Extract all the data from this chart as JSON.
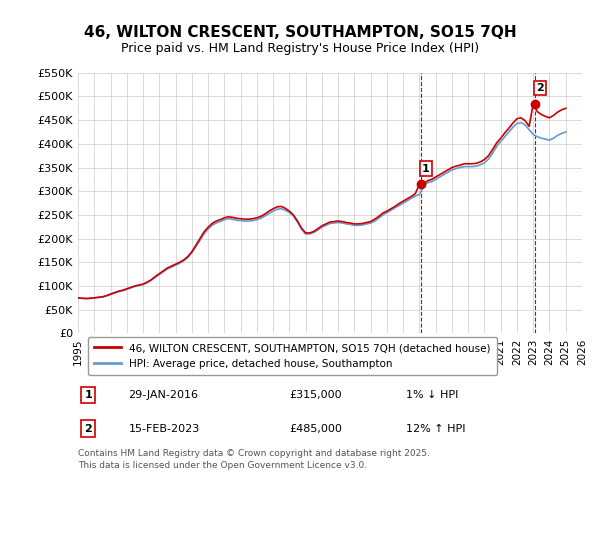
{
  "title": "46, WILTON CRESCENT, SOUTHAMPTON, SO15 7QH",
  "subtitle": "Price paid vs. HM Land Registry's House Price Index (HPI)",
  "background_color": "#ffffff",
  "grid_color": "#cccccc",
  "ylim": [
    0,
    550000
  ],
  "yticks": [
    0,
    50000,
    100000,
    150000,
    200000,
    250000,
    300000,
    350000,
    400000,
    450000,
    500000,
    550000
  ],
  "xlim_start": 1995,
  "xlim_end": 2026,
  "red_line_color": "#cc0000",
  "blue_line_color": "#6699cc",
  "marker1_x": 2016.08,
  "marker1_y": 315000,
  "marker2_x": 2023.12,
  "marker2_y": 485000,
  "vline1_x": 2016.08,
  "vline2_x": 2023.12,
  "legend_label_red": "46, WILTON CRESCENT, SOUTHAMPTON, SO15 7QH (detached house)",
  "legend_label_blue": "HPI: Average price, detached house, Southampton",
  "annotation1_label": "1",
  "annotation1_date": "29-JAN-2016",
  "annotation1_price": "£315,000",
  "annotation1_hpi": "1% ↓ HPI",
  "annotation2_label": "2",
  "annotation2_date": "15-FEB-2023",
  "annotation2_price": "£485,000",
  "annotation2_hpi": "12% ↑ HPI",
  "footer": "Contains HM Land Registry data © Crown copyright and database right 2025.\nThis data is licensed under the Open Government Licence v3.0.",
  "hpi_series_x": [
    1995,
    1995.25,
    1995.5,
    1995.75,
    1996,
    1996.25,
    1996.5,
    1996.75,
    1997,
    1997.25,
    1997.5,
    1997.75,
    1998,
    1998.25,
    1998.5,
    1998.75,
    1999,
    1999.25,
    1999.5,
    1999.75,
    2000,
    2000.25,
    2000.5,
    2000.75,
    2001,
    2001.25,
    2001.5,
    2001.75,
    2002,
    2002.25,
    2002.5,
    2002.75,
    2003,
    2003.25,
    2003.5,
    2003.75,
    2004,
    2004.25,
    2004.5,
    2004.75,
    2005,
    2005.25,
    2005.5,
    2005.75,
    2006,
    2006.25,
    2006.5,
    2006.75,
    2007,
    2007.25,
    2007.5,
    2007.75,
    2008,
    2008.25,
    2008.5,
    2008.75,
    2009,
    2009.25,
    2009.5,
    2009.75,
    2010,
    2010.25,
    2010.5,
    2010.75,
    2011,
    2011.25,
    2011.5,
    2011.75,
    2012,
    2012.25,
    2012.5,
    2012.75,
    2013,
    2013.25,
    2013.5,
    2013.75,
    2014,
    2014.25,
    2014.5,
    2014.75,
    2015,
    2015.25,
    2015.5,
    2015.75,
    2016,
    2016.25,
    2016.5,
    2016.75,
    2017,
    2017.25,
    2017.5,
    2017.75,
    2018,
    2018.25,
    2018.5,
    2018.75,
    2019,
    2019.25,
    2019.5,
    2019.75,
    2020,
    2020.25,
    2020.5,
    2020.75,
    2021,
    2021.25,
    2021.5,
    2021.75,
    2022,
    2022.25,
    2022.5,
    2022.75,
    2023,
    2023.25,
    2023.5,
    2023.75,
    2024,
    2024.25,
    2024.5,
    2024.75,
    2025
  ],
  "hpi_series_y": [
    75000,
    74000,
    73500,
    74000,
    75000,
    76000,
    77000,
    79000,
    82000,
    85000,
    88000,
    90000,
    93000,
    96000,
    99000,
    101000,
    103000,
    107000,
    112000,
    118000,
    124000,
    130000,
    136000,
    140000,
    144000,
    148000,
    153000,
    160000,
    170000,
    183000,
    196000,
    210000,
    220000,
    228000,
    233000,
    236000,
    240000,
    242000,
    241000,
    239000,
    238000,
    237000,
    237000,
    238000,
    240000,
    243000,
    248000,
    253000,
    258000,
    262000,
    263000,
    260000,
    255000,
    248000,
    235000,
    220000,
    210000,
    210000,
    213000,
    218000,
    224000,
    228000,
    232000,
    233000,
    234000,
    233000,
    231000,
    230000,
    228000,
    228000,
    229000,
    231000,
    233000,
    237000,
    243000,
    250000,
    255000,
    260000,
    265000,
    270000,
    275000,
    280000,
    285000,
    290000,
    293000,
    310000,
    318000,
    320000,
    325000,
    330000,
    335000,
    340000,
    345000,
    348000,
    350000,
    352000,
    352000,
    352000,
    353000,
    356000,
    360000,
    368000,
    380000,
    395000,
    405000,
    415000,
    425000,
    435000,
    443000,
    445000,
    440000,
    430000,
    420000,
    415000,
    412000,
    410000,
    408000,
    412000,
    418000,
    422000,
    425000
  ],
  "price_series_x": [
    1995,
    1995.25,
    1995.5,
    1995.75,
    1996,
    1996.25,
    1996.5,
    1996.75,
    1997,
    1997.25,
    1997.5,
    1997.75,
    1998,
    1998.25,
    1998.5,
    1998.75,
    1999,
    1999.25,
    1999.5,
    1999.75,
    2000,
    2000.25,
    2000.5,
    2000.75,
    2001,
    2001.25,
    2001.5,
    2001.75,
    2002,
    2002.25,
    2002.5,
    2002.75,
    2003,
    2003.25,
    2003.5,
    2003.75,
    2004,
    2004.25,
    2004.5,
    2004.75,
    2005,
    2005.25,
    2005.5,
    2005.75,
    2006,
    2006.25,
    2006.5,
    2006.75,
    2007,
    2007.25,
    2007.5,
    2007.75,
    2008,
    2008.25,
    2008.5,
    2008.75,
    2009,
    2009.25,
    2009.5,
    2009.75,
    2010,
    2010.25,
    2010.5,
    2010.75,
    2011,
    2011.25,
    2011.5,
    2011.75,
    2012,
    2012.25,
    2012.5,
    2012.75,
    2013,
    2013.25,
    2013.5,
    2013.75,
    2014,
    2014.25,
    2014.5,
    2014.75,
    2015,
    2015.25,
    2015.5,
    2015.75,
    2016,
    2016.25,
    2016.5,
    2016.75,
    2017,
    2017.25,
    2017.5,
    2017.75,
    2018,
    2018.25,
    2018.5,
    2018.75,
    2019,
    2019.25,
    2019.5,
    2019.75,
    2020,
    2020.25,
    2020.5,
    2020.75,
    2021,
    2021.25,
    2021.5,
    2021.75,
    2022,
    2022.25,
    2022.5,
    2022.75,
    2023,
    2023.25,
    2023.5,
    2023.75,
    2024,
    2024.25,
    2024.5,
    2024.75,
    2025
  ],
  "price_series_y": [
    75000,
    74000,
    73500,
    74000,
    75000,
    76000,
    77000,
    79500,
    83000,
    86000,
    89000,
    91000,
    94000,
    97000,
    100000,
    102000,
    104000,
    108000,
    113000,
    120000,
    126000,
    132000,
    138000,
    142000,
    146000,
    150000,
    155000,
    162000,
    172000,
    186000,
    200000,
    214000,
    224000,
    232000,
    237000,
    240000,
    244000,
    246000,
    245000,
    243000,
    242000,
    241000,
    241000,
    242000,
    244000,
    247000,
    252000,
    258000,
    263000,
    267000,
    268000,
    264000,
    258000,
    250000,
    237000,
    222000,
    212000,
    212000,
    215000,
    221000,
    227000,
    231000,
    235000,
    236000,
    237000,
    236000,
    234000,
    233000,
    231000,
    231000,
    232000,
    234000,
    236000,
    241000,
    247000,
    254000,
    258000,
    263000,
    268000,
    274000,
    279000,
    284000,
    289000,
    295000,
    315000,
    316000,
    322000,
    325000,
    330000,
    335000,
    340000,
    345000,
    350000,
    353000,
    355000,
    358000,
    358000,
    358000,
    359000,
    362000,
    367000,
    375000,
    388000,
    402000,
    412000,
    423000,
    433000,
    444000,
    453000,
    455000,
    449000,
    437000,
    485000,
    468000,
    462000,
    458000,
    455000,
    460000,
    467000,
    472000,
    475000
  ]
}
